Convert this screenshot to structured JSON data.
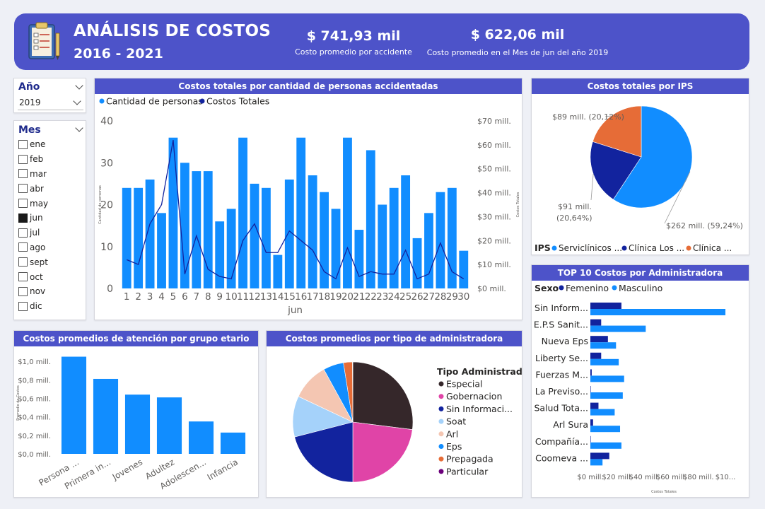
{
  "header": {
    "title": "ANÁLISIS DE COSTOS",
    "subtitle": "2016 - 2021",
    "icon": "clipboard-icon",
    "kpi1_value": "$ 741,93 mil",
    "kpi1_label": "Costo promedio por accidente",
    "kpi2_value": "$ 622,06 mil",
    "kpi2_label": "Costo promedio en el Mes de jun del año 2019"
  },
  "slicer_year": {
    "title": "Año",
    "value": "2019"
  },
  "slicer_month": {
    "title": "Mes",
    "items": [
      "ene",
      "feb",
      "mar",
      "abr",
      "may",
      "jun",
      "jul",
      "ago",
      "sept",
      "oct",
      "nov",
      "dic"
    ],
    "selected": "jun"
  },
  "colors": {
    "accent": "#4d53c9",
    "bar": "#118dff",
    "dark_blue": "#12239e",
    "orange": "#e66c37"
  },
  "chart_data": [
    {
      "id": "combo",
      "type": "bar",
      "title": "Costos totales por cantidad de personas accidentadas",
      "legend": [
        "Cantidad de personas",
        "Costos Totales"
      ],
      "xlabel": "jun",
      "ylabel": "Cantidad de personas",
      "y2label": "Costos Totales",
      "categories": [
        "1",
        "2",
        "3",
        "4",
        "5",
        "6",
        "7",
        "8",
        "9",
        "10",
        "11",
        "12",
        "13",
        "14",
        "15",
        "16",
        "17",
        "18",
        "19",
        "20",
        "21",
        "22",
        "23",
        "24",
        "25",
        "26",
        "27",
        "28",
        "29",
        "30"
      ],
      "ylim": [
        0,
        40
      ],
      "yticks": [
        "0",
        "10",
        "20",
        "30",
        "40"
      ],
      "y2lim": [
        0,
        70
      ],
      "y2ticks": [
        "$0 mill.",
        "$10 mill.",
        "$20 mill.",
        "$30 mill.",
        "$40 mill.",
        "$50 mill.",
        "$60 mill.",
        "$70 mill."
      ],
      "series": [
        {
          "name": "Cantidad de personas",
          "type": "bar",
          "values": [
            24,
            24,
            26,
            18,
            36,
            30,
            28,
            28,
            16,
            19,
            36,
            25,
            24,
            8,
            26,
            36,
            27,
            23,
            19,
            36,
            14,
            33,
            20,
            24,
            27,
            12,
            18,
            23,
            24,
            9
          ]
        },
        {
          "name": "Costos Totales",
          "type": "line",
          "values": [
            12,
            10,
            27,
            35,
            62,
            6,
            22,
            8,
            5,
            4,
            20,
            27,
            15,
            15,
            24,
            20,
            16,
            7,
            4,
            17,
            5,
            7,
            6,
            6,
            16,
            4,
            6,
            19,
            7,
            4
          ]
        }
      ]
    },
    {
      "id": "ips",
      "type": "pie",
      "title": "Costos totales por IPS",
      "legend_title": "IPS",
      "legend": [
        "Serviclínicos ...",
        "Clínica Los ...",
        "Clínica ..."
      ],
      "slices": [
        {
          "value": 262,
          "label": "$262 mill. (59,24%)",
          "color": "#118dff"
        },
        {
          "value": 91,
          "label_lines": [
            "$91 mill.",
            "(20,64%)"
          ],
          "color": "#12239e"
        },
        {
          "value": 89,
          "label": "$89 mill. (20,12%)",
          "color": "#e66c37"
        }
      ]
    },
    {
      "id": "top10",
      "type": "bar",
      "title": "TOP 10 Costos por Administradora",
      "legend_title": "Sexo",
      "legend": [
        "Femenino",
        "Masculino"
      ],
      "xlabel": "Costos Totales",
      "xlim": [
        0,
        100
      ],
      "xticks": [
        "$0 mill.",
        "$20 mill.",
        "$40 mill.",
        "$60 mill.",
        "$80 mill.",
        "$10..."
      ],
      "categories": [
        "Sin Inform...",
        "E.P.S Sanit...",
        "Nueva Eps",
        "Liberty Se...",
        "Fuerzas M...",
        "La Previso...",
        "Salud Tota...",
        "Arl Sura",
        "Compañía...",
        "Coomeva ..."
      ],
      "series": [
        {
          "name": "Femenino",
          "values": [
            23,
            8,
            13,
            8,
            1,
            0,
            6,
            2,
            0,
            14
          ]
        },
        {
          "name": "Masculino",
          "values": [
            100,
            41,
            19,
            21,
            25,
            24,
            18,
            22,
            23,
            9
          ]
        }
      ]
    },
    {
      "id": "age",
      "type": "bar",
      "title": "Costos promedios de atención por grupo etario",
      "ylabel": "Promedio de Costos",
      "ylim": [
        0,
        1.1
      ],
      "yticks": [
        "$0,0 mill.",
        "$0,2 mill.",
        "$0,4 mill.",
        "$0,6 mill.",
        "$0,8 mill.",
        "$1,0 mill."
      ],
      "categories": [
        "Persona ...",
        "Primera in...",
        "Jovenes",
        "Adultez",
        "Adolescen...",
        "Infancia"
      ],
      "values": [
        1.05,
        0.81,
        0.64,
        0.61,
        0.35,
        0.23
      ]
    },
    {
      "id": "admin",
      "type": "pie",
      "title": "Costos promedios por tipo de administradora",
      "legend_title": "Tipo Administrad...",
      "legend": [
        "Especial",
        "Gobernacion",
        "Sin Informaci...",
        "Soat",
        "Arl",
        "Eps",
        "Prepagada",
        "Particular"
      ],
      "slices": [
        {
          "value": 27,
          "color": "#35272a"
        },
        {
          "value": 23,
          "color": "#e044a7"
        },
        {
          "value": 21,
          "color": "#12239e"
        },
        {
          "value": 11,
          "color": "#a5d2fa"
        },
        {
          "value": 10,
          "color": "#f4c6b2"
        },
        {
          "value": 5.5,
          "color": "#118dff"
        },
        {
          "value": 2.4,
          "color": "#e66c37"
        },
        {
          "value": 0.1,
          "color": "#6b007b"
        }
      ]
    }
  ]
}
